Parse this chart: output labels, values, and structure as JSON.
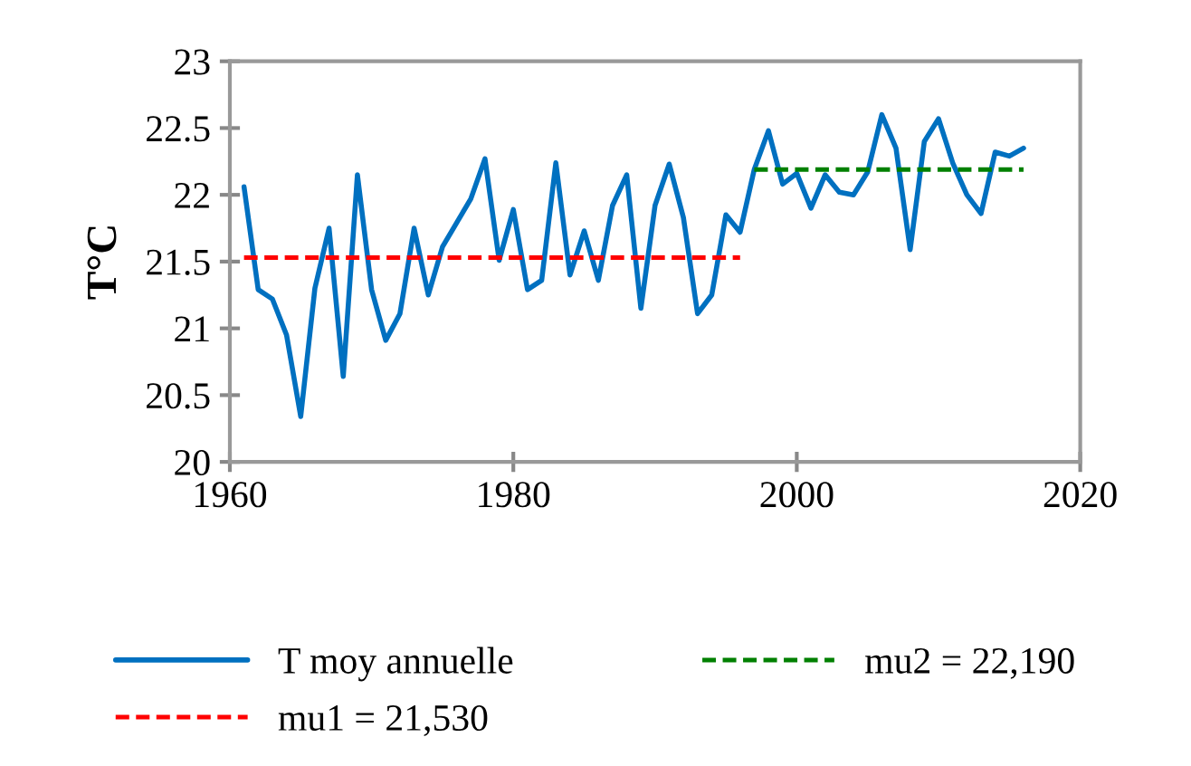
{
  "chart_data": {
    "type": "line",
    "ylabel": "T°C",
    "xlim": [
      1960,
      2020
    ],
    "ylim": [
      20,
      23
    ],
    "xticks": [
      1960,
      1980,
      2000,
      2020
    ],
    "yticks": [
      20,
      20.5,
      21,
      21.5,
      22,
      22.5,
      23
    ],
    "grid": false,
    "legend": "bottom",
    "line_style": "solid",
    "marker": "none",
    "x": [
      1961,
      1962,
      1963,
      1964,
      1965,
      1966,
      1967,
      1968,
      1969,
      1970,
      1971,
      1972,
      1973,
      1974,
      1975,
      1976,
      1977,
      1978,
      1979,
      1980,
      1981,
      1982,
      1983,
      1984,
      1985,
      1986,
      1987,
      1988,
      1989,
      1990,
      1991,
      1992,
      1993,
      1994,
      1995,
      1996,
      1997,
      1998,
      1999,
      2000,
      2001,
      2002,
      2003,
      2004,
      2005,
      2006,
      2007,
      2008,
      2009,
      2010,
      2011,
      2012,
      2013,
      2014,
      2015,
      2016
    ],
    "series": [
      {
        "name": "T moy annuelle",
        "color": "#0070c0",
        "values": [
          22.06,
          21.29,
          21.22,
          20.95,
          20.34,
          21.3,
          21.75,
          20.64,
          22.15,
          21.29,
          20.91,
          21.11,
          21.75,
          21.25,
          21.61,
          21.79,
          21.97,
          22.27,
          21.51,
          21.89,
          21.29,
          21.36,
          22.24,
          21.4,
          21.73,
          21.36,
          21.92,
          22.15,
          21.15,
          21.92,
          22.23,
          21.83,
          21.11,
          21.25,
          21.85,
          21.72,
          22.19,
          22.48,
          22.08,
          22.16,
          21.9,
          22.15,
          22.02,
          22.0,
          22.17,
          22.6,
          22.35,
          21.59,
          22.4,
          22.57,
          22.24,
          22.0,
          21.86,
          22.32,
          22.29,
          22.35
        ]
      },
      {
        "name": "mu1 = 21,530",
        "color": "#ff0000",
        "line_style": "dashed",
        "x": [
          1961,
          1996
        ],
        "values": [
          21.53,
          21.53
        ]
      },
      {
        "name": "mu2 = 22,190",
        "color": "#008000",
        "line_style": "dashed",
        "x": [
          1997,
          2016
        ],
        "values": [
          22.19,
          22.19
        ]
      }
    ]
  }
}
